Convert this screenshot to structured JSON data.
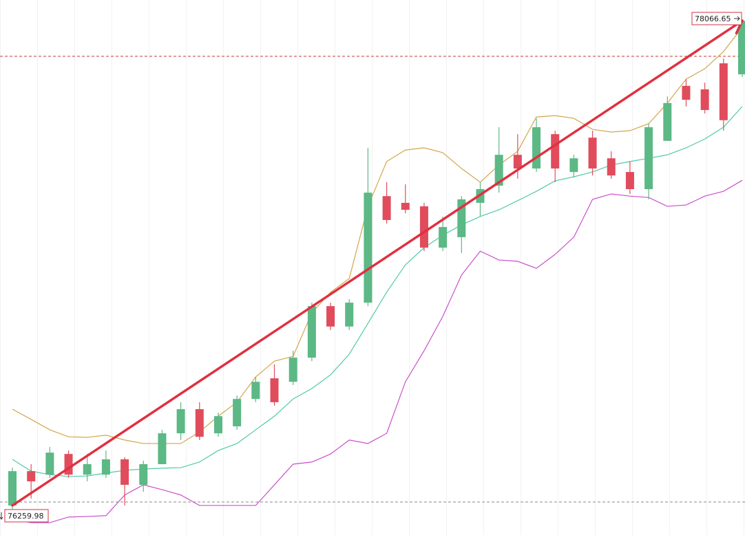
{
  "chart_data": {
    "type": "candlestick",
    "ylim": [
      76150,
      78144
    ],
    "up_color": "#5cb885",
    "down_color": "#e04c5c",
    "open": [
      76259.98,
      76388,
      76375,
      76452,
      76375,
      76375,
      76432,
      76337,
      76414,
      76529,
      76619,
      76529,
      76555,
      76657,
      76734,
      76721,
      76811,
      77003,
      76927,
      77016,
      77413,
      77388,
      77375,
      77221,
      77260,
      77388,
      77452,
      77567,
      77516,
      77644,
      77503,
      77631,
      77554,
      77503,
      77439,
      77619,
      77824,
      77811,
      77908,
      77867
    ],
    "high": [
      76401,
      76414,
      76478,
      76465,
      76452,
      76465,
      76440,
      76427,
      76542,
      76645,
      76645,
      76606,
      76670,
      76739,
      76786,
      76837,
      77016,
      77016,
      77029,
      77593,
      77465,
      77457,
      77388,
      77337,
      77413,
      77465,
      77670,
      77644,
      77703,
      77657,
      77567,
      77657,
      77580,
      77542,
      77683,
      77785,
      77849,
      77836,
      77926,
      78072
    ],
    "low": [
      76247,
      76286,
      76363,
      76363,
      76350,
      76363,
      76260,
      76311,
      76414,
      76504,
      76504,
      76516,
      76542,
      76645,
      76632,
      76709,
      76798,
      76914,
      76914,
      77003,
      77311,
      77349,
      77208,
      77208,
      77201,
      77337,
      77426,
      77478,
      77503,
      77465,
      77483,
      77490,
      77478,
      77421,
      77401,
      77619,
      77747,
      77721,
      77657,
      77857
    ],
    "close": [
      76388,
      76350,
      76457,
      76375,
      76414,
      76432,
      76337,
      76414,
      76529,
      76619,
      76516,
      76593,
      76657,
      76721,
      76645,
      76811,
      77003,
      76927,
      77016,
      77426,
      77324,
      77362,
      77221,
      77298,
      77401,
      77439,
      77567,
      77516,
      77670,
      77516,
      77554,
      77516,
      77490,
      77439,
      77670,
      77760,
      77772,
      77734,
      77696,
      78066.65
    ],
    "bands": [
      {
        "color": "#d4a548",
        "values": [
          76619,
          76581,
          76542,
          76516,
          76514,
          76522,
          76504,
          76491,
          76491,
          76491,
          76534,
          76593,
          76645,
          76739,
          76798,
          76816,
          76978,
          77055,
          77106,
          77375,
          77542,
          77585,
          77593,
          77575,
          77516,
          77465,
          77529,
          77580,
          77708,
          77713,
          77703,
          77662,
          77652,
          77657,
          77683,
          77760,
          77849,
          77888,
          77952,
          78042
        ]
      },
      {
        "color": "#4fc9a8",
        "values": [
          76432,
          76388,
          76375,
          76368,
          76370,
          76381,
          76391,
          76396,
          76399,
          76401,
          76422,
          76465,
          76491,
          76542,
          76593,
          76657,
          76696,
          76747,
          76824,
          76939,
          77055,
          77157,
          77221,
          77267,
          77306,
          77337,
          77362,
          77396,
          77431,
          77470,
          77485,
          77503,
          77529,
          77542,
          77554,
          77567,
          77593,
          77626,
          77670,
          77747
        ]
      },
      {
        "color": "#c94fc9",
        "values": [
          76209,
          76196,
          76196,
          76217,
          76219,
          76222,
          76299,
          76337,
          76319,
          76299,
          76260,
          76260,
          76260,
          76260,
          76337,
          76414,
          76422,
          76452,
          76504,
          76491,
          76529,
          76721,
          76837,
          76965,
          77119,
          77208,
          77175,
          77170,
          77144,
          77196,
          77260,
          77401,
          77421,
          77413,
          77408,
          77375,
          77380,
          77413,
          77431,
          77472
        ]
      }
    ],
    "hlines": [
      {
        "value": 77934,
        "color": "#c0392b"
      },
      {
        "value": 76273,
        "color": "#888888"
      }
    ],
    "trend_color": "#e03040"
  }
}
